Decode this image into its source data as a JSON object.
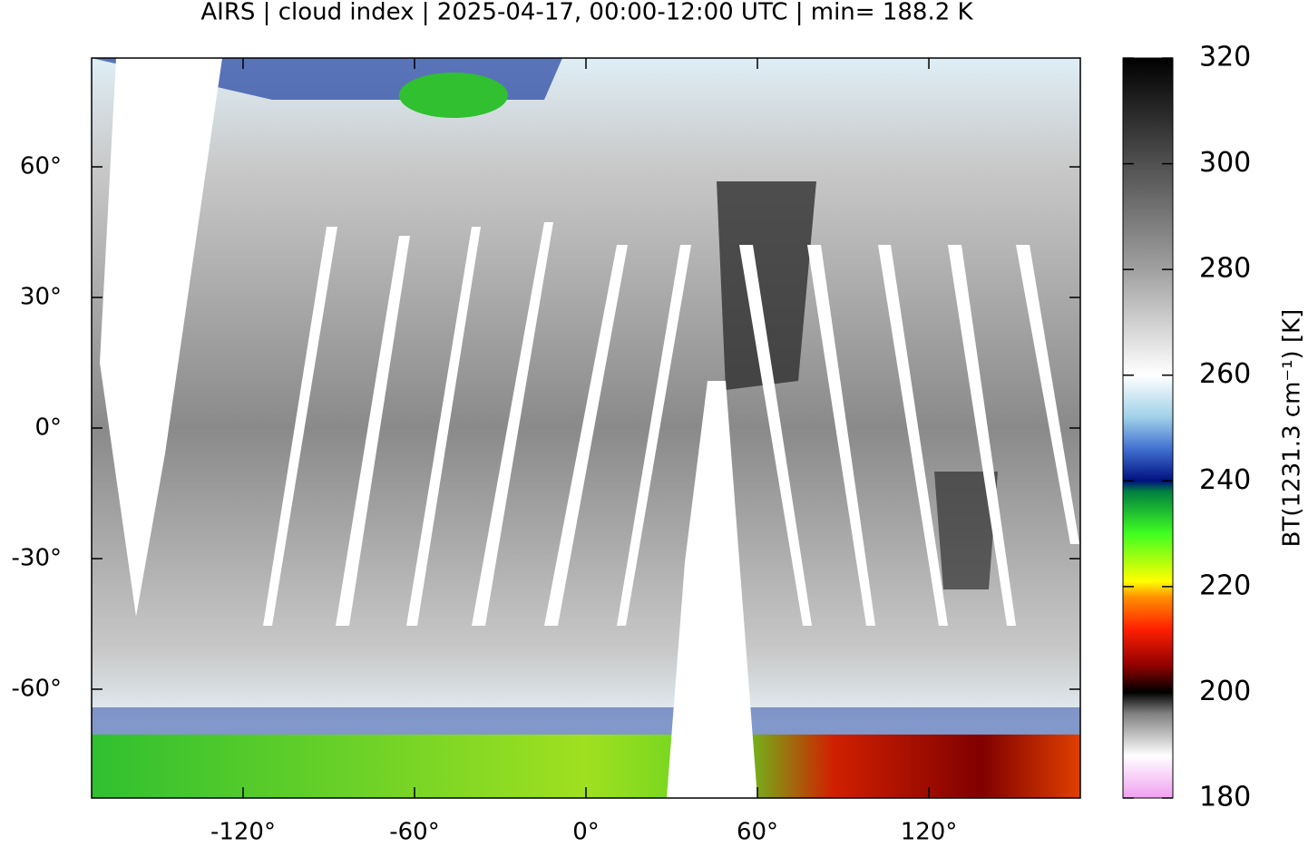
{
  "title": "AIRS | cloud index | 2025-04-17, 00:00-12:00 UTC | min= 188.2 K",
  "map": {
    "xlim": [
      -173,
      173
    ],
    "ylim": [
      -85,
      85
    ],
    "xticks": [
      {
        "value": -120,
        "label": "-120°"
      },
      {
        "value": -60,
        "label": "-60°"
      },
      {
        "value": 0,
        "label": "0°"
      },
      {
        "value": 60,
        "label": "60°"
      },
      {
        "value": 120,
        "label": "120°"
      }
    ],
    "yticks": [
      {
        "value": 60,
        "label": "60°"
      },
      {
        "value": 30,
        "label": "30°"
      },
      {
        "value": 0,
        "label": "0°"
      },
      {
        "value": -30,
        "label": "-30°"
      },
      {
        "value": -60,
        "label": "-60°"
      }
    ]
  },
  "colorbar": {
    "label": "BT(1231.3 cm⁻¹) [K]",
    "lim": [
      180,
      320
    ],
    "ticks": [
      180,
      200,
      220,
      240,
      260,
      280,
      300,
      320
    ],
    "colormap": [
      {
        "value": 180,
        "color": "#f0a0f0"
      },
      {
        "value": 188,
        "color": "#ffffff"
      },
      {
        "value": 196,
        "color": "#808080"
      },
      {
        "value": 200,
        "color": "#000000"
      },
      {
        "value": 205,
        "color": "#900000"
      },
      {
        "value": 212,
        "color": "#ff2000"
      },
      {
        "value": 218,
        "color": "#ff9000"
      },
      {
        "value": 221,
        "color": "#ffff00"
      },
      {
        "value": 230,
        "color": "#40ff20"
      },
      {
        "value": 238,
        "color": "#008040"
      },
      {
        "value": 240,
        "color": "#001080"
      },
      {
        "value": 246,
        "color": "#4070d0"
      },
      {
        "value": 252,
        "color": "#a0d0e8"
      },
      {
        "value": 260,
        "color": "#ffffff"
      },
      {
        "value": 280,
        "color": "#a0a0a0"
      },
      {
        "value": 300,
        "color": "#505050"
      },
      {
        "value": 320,
        "color": "#000000"
      }
    ]
  }
}
